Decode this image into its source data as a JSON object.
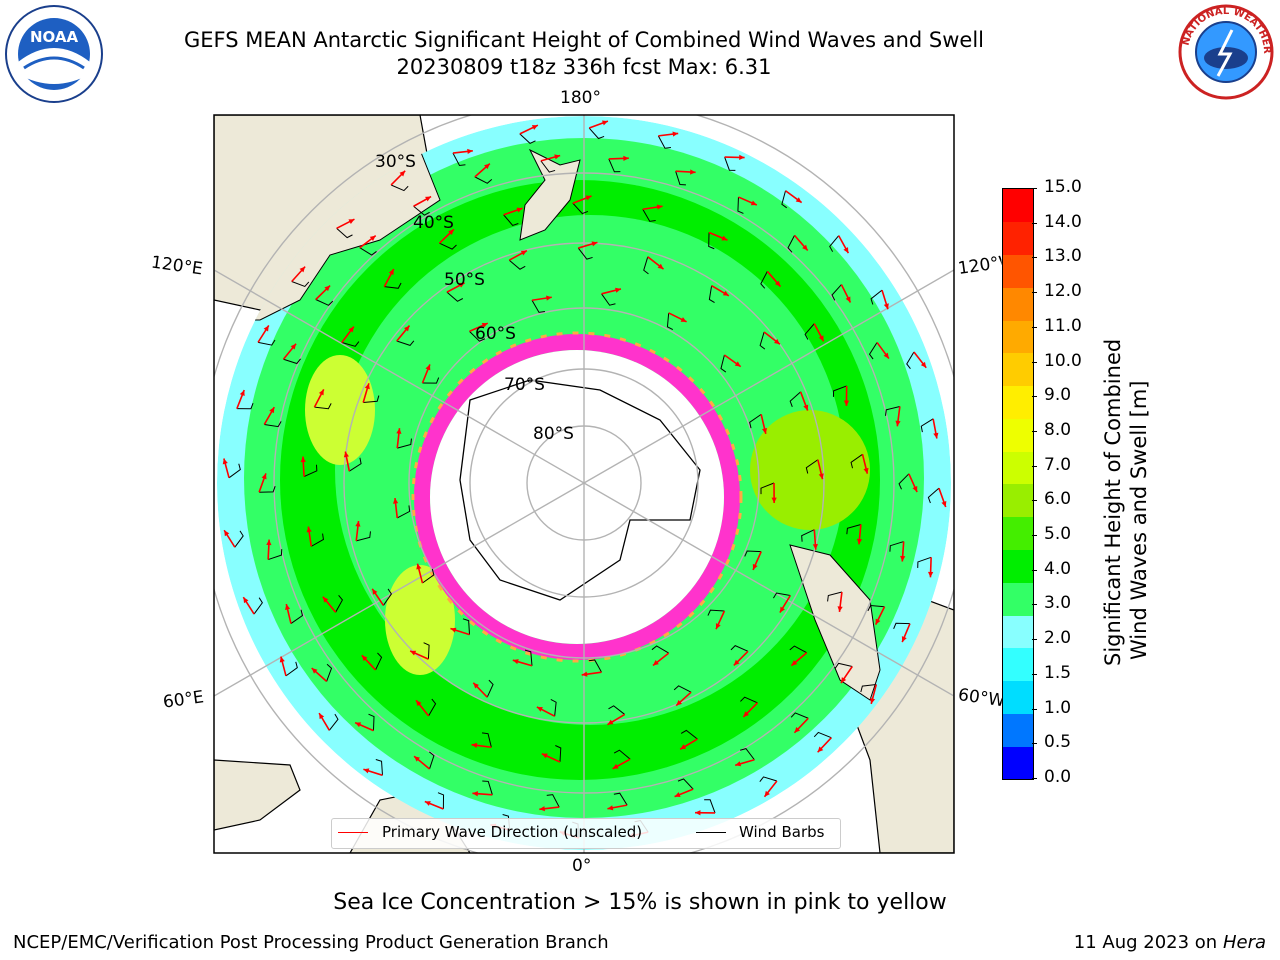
{
  "header": {
    "title_line1": "GEFS MEAN Antarctic Significant Height of Combined Wind Waves and Swell",
    "title_line2": "20230809 t18z 336h fcst   Max: 6.31"
  },
  "logos": {
    "left": {
      "name": "noaa-logo",
      "text": "NOAA"
    },
    "right": {
      "name": "nws-logo",
      "text": "NATIONAL WEATHER SERVICE"
    }
  },
  "map": {
    "projection": "south polar stereographic",
    "lon_labels": {
      "top": "180°",
      "bottom": "0°",
      "left_upper": "120°E",
      "left_lower": "60°E",
      "right_upper": "120°W",
      "right_lower": "60°W"
    },
    "lat_labels": [
      "30°S",
      "40°S",
      "50°S",
      "60°S",
      "70°S",
      "80°S"
    ],
    "colors": {
      "land": "#ede9d8",
      "ocean_low": "#66ffff",
      "ocean_mid": "#33ff66",
      "ocean_high": "#00ee00",
      "sea_ice_edge": "#ff33cc",
      "arrow": "#ff0000",
      "barb": "#000000",
      "grid": "#b3b3b3"
    }
  },
  "legend": {
    "entries": [
      {
        "label": "Primary Wave Direction (unscaled)",
        "color": "#ff0000"
      },
      {
        "label": "Wind Barbs",
        "color": "#000000"
      }
    ]
  },
  "colorbar": {
    "label_line1": "Significant Height of Combined",
    "label_line2": "Wind Waves and Swell [m]",
    "ticks": [
      "0.0",
      "0.5",
      "1.0",
      "1.5",
      "2.0",
      "3.0",
      "4.0",
      "5.0",
      "6.0",
      "7.0",
      "8.0",
      "9.0",
      "10.0",
      "11.0",
      "12.0",
      "13.0",
      "14.0",
      "15.0"
    ],
    "colors": [
      "#0000ff",
      "#0077ff",
      "#00ddff",
      "#33ffff",
      "#88ffff",
      "#33ff66",
      "#00ee00",
      "#44ee00",
      "#99ee00",
      "#ccff00",
      "#eeff00",
      "#ffee00",
      "#ffcc00",
      "#ffaa00",
      "#ff8800",
      "#ff5500",
      "#ff2200",
      "#ff0000"
    ]
  },
  "footer": {
    "sea_ice_note": "Sea Ice Concentration > 15% is shown in pink to yellow",
    "credit": "NCEP/EMC/Verification Post Processing Product Generation Branch",
    "date": "11 Aug 2023 on",
    "host": "Hera"
  }
}
